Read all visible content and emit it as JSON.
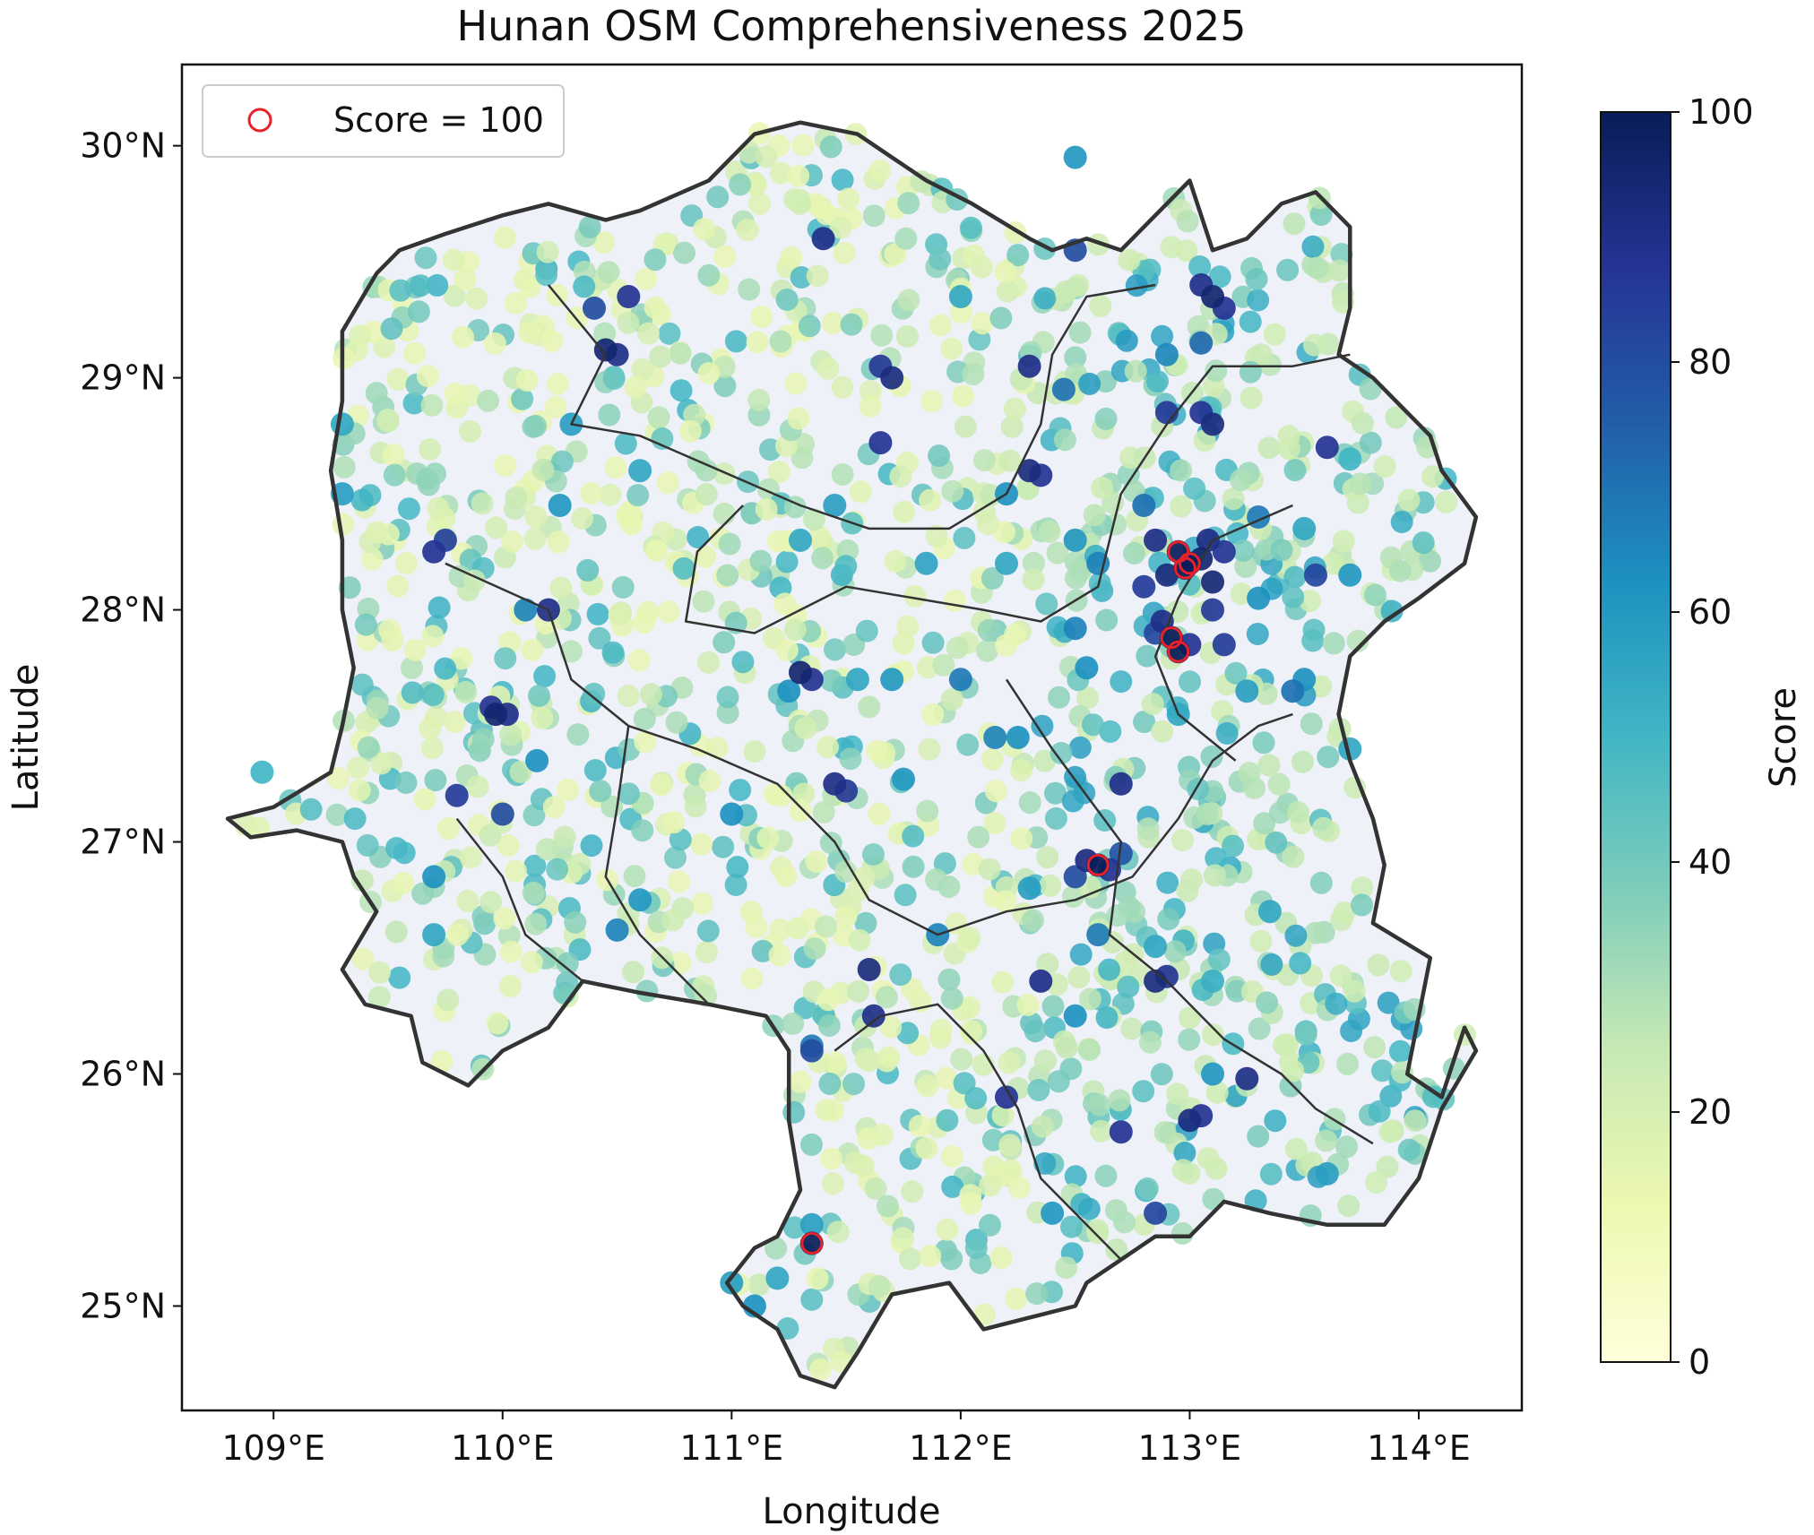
{
  "chart_data": {
    "type": "scatter",
    "title": "Hunan OSM Comprehensiveness 2025",
    "xlabel": "Longitude",
    "ylabel": "Latitude",
    "xlim": [
      108.6,
      114.45
    ],
    "ylim": [
      24.55,
      30.35
    ],
    "x_ticks": [
      {
        "value": 109,
        "label": "109°E"
      },
      {
        "value": 110,
        "label": "110°E"
      },
      {
        "value": 111,
        "label": "111°E"
      },
      {
        "value": 112,
        "label": "112°E"
      },
      {
        "value": 113,
        "label": "113°E"
      },
      {
        "value": 114,
        "label": "114°E"
      }
    ],
    "y_ticks": [
      {
        "value": 25,
        "label": "25°N"
      },
      {
        "value": 26,
        "label": "26°N"
      },
      {
        "value": 27,
        "label": "27°N"
      },
      {
        "value": 28,
        "label": "28°N"
      },
      {
        "value": 29,
        "label": "29°N"
      },
      {
        "value": 30,
        "label": "30°N"
      }
    ],
    "colorbar": {
      "label": "Score",
      "min": 0,
      "max": 100,
      "colormap": "YlGnBu",
      "ticks": [
        {
          "value": 0,
          "label": "0"
        },
        {
          "value": 20,
          "label": "20"
        },
        {
          "value": 40,
          "label": "40"
        },
        {
          "value": 60,
          "label": "60"
        },
        {
          "value": 80,
          "label": "80"
        },
        {
          "value": 100,
          "label": "100"
        }
      ]
    },
    "legend": {
      "position": "top-left",
      "label": "Score = 100",
      "marker_color": "#e8212a"
    },
    "boundary_lonlat": [
      [
        108.8,
        27.1
      ],
      [
        109.0,
        27.15
      ],
      [
        109.25,
        27.3
      ],
      [
        109.3,
        27.5
      ],
      [
        109.35,
        27.75
      ],
      [
        109.3,
        28.0
      ],
      [
        109.3,
        28.3
      ],
      [
        109.25,
        28.6
      ],
      [
        109.3,
        28.9
      ],
      [
        109.3,
        29.2
      ],
      [
        109.45,
        29.45
      ],
      [
        109.55,
        29.55
      ],
      [
        109.75,
        29.62
      ],
      [
        110.0,
        29.7
      ],
      [
        110.2,
        29.75
      ],
      [
        110.45,
        29.68
      ],
      [
        110.6,
        29.72
      ],
      [
        110.9,
        29.85
      ],
      [
        111.1,
        30.05
      ],
      [
        111.3,
        30.1
      ],
      [
        111.55,
        30.05
      ],
      [
        111.7,
        29.95
      ],
      [
        111.85,
        29.85
      ],
      [
        112.05,
        29.75
      ],
      [
        112.3,
        29.6
      ],
      [
        112.4,
        29.55
      ],
      [
        112.55,
        29.6
      ],
      [
        112.7,
        29.55
      ],
      [
        112.85,
        29.7
      ],
      [
        113.0,
        29.85
      ],
      [
        113.1,
        29.55
      ],
      [
        113.25,
        29.6
      ],
      [
        113.4,
        29.75
      ],
      [
        113.55,
        29.8
      ],
      [
        113.7,
        29.65
      ],
      [
        113.7,
        29.3
      ],
      [
        113.65,
        29.1
      ],
      [
        113.8,
        29.0
      ],
      [
        113.9,
        28.9
      ],
      [
        114.05,
        28.75
      ],
      [
        114.1,
        28.6
      ],
      [
        114.25,
        28.4
      ],
      [
        114.2,
        28.2
      ],
      [
        114.0,
        28.05
      ],
      [
        113.85,
        27.95
      ],
      [
        113.7,
        27.8
      ],
      [
        113.65,
        27.55
      ],
      [
        113.7,
        27.35
      ],
      [
        113.8,
        27.1
      ],
      [
        113.85,
        26.9
      ],
      [
        113.8,
        26.65
      ],
      [
        114.05,
        26.5
      ],
      [
        114.0,
        26.25
      ],
      [
        113.95,
        26.0
      ],
      [
        114.1,
        25.9
      ],
      [
        114.2,
        26.2
      ],
      [
        114.25,
        26.1
      ],
      [
        114.1,
        25.85
      ],
      [
        114.0,
        25.55
      ],
      [
        113.85,
        25.35
      ],
      [
        113.6,
        25.35
      ],
      [
        113.35,
        25.4
      ],
      [
        113.15,
        25.45
      ],
      [
        113.0,
        25.3
      ],
      [
        112.85,
        25.3
      ],
      [
        112.7,
        25.2
      ],
      [
        112.55,
        25.1
      ],
      [
        112.5,
        25.0
      ],
      [
        112.3,
        24.95
      ],
      [
        112.1,
        24.9
      ],
      [
        111.95,
        25.1
      ],
      [
        111.7,
        25.05
      ],
      [
        111.55,
        24.8
      ],
      [
        111.45,
        24.65
      ],
      [
        111.3,
        24.7
      ],
      [
        111.2,
        24.9
      ],
      [
        111.05,
        25.0
      ],
      [
        110.98,
        25.1
      ],
      [
        111.1,
        25.25
      ],
      [
        111.2,
        25.3
      ],
      [
        111.3,
        25.5
      ],
      [
        111.25,
        25.8
      ],
      [
        111.25,
        26.1
      ],
      [
        111.15,
        26.25
      ],
      [
        110.9,
        26.3
      ],
      [
        110.6,
        26.35
      ],
      [
        110.35,
        26.4
      ],
      [
        110.2,
        26.2
      ],
      [
        110.0,
        26.1
      ],
      [
        109.85,
        25.95
      ],
      [
        109.65,
        26.05
      ],
      [
        109.6,
        26.25
      ],
      [
        109.4,
        26.3
      ],
      [
        109.3,
        26.45
      ],
      [
        109.45,
        26.7
      ],
      [
        109.35,
        26.85
      ],
      [
        109.3,
        27.0
      ],
      [
        109.1,
        27.05
      ],
      [
        108.9,
        27.02
      ],
      [
        108.8,
        27.1
      ]
    ],
    "inner_borders_lonlat": [
      [
        [
          110.2,
          29.4
        ],
        [
          110.45,
          29.1
        ],
        [
          110.3,
          28.8
        ],
        [
          110.6,
          28.75
        ],
        [
          110.95,
          28.6
        ],
        [
          111.3,
          28.45
        ],
        [
          111.6,
          28.35
        ],
        [
          111.95,
          28.35
        ],
        [
          112.2,
          28.5
        ],
        [
          112.35,
          28.8
        ],
        [
          112.4,
          29.1
        ],
        [
          112.55,
          29.35
        ],
        [
          112.85,
          29.4
        ]
      ],
      [
        [
          111.05,
          28.45
        ],
        [
          110.85,
          28.25
        ],
        [
          110.8,
          27.95
        ],
        [
          111.1,
          27.9
        ],
        [
          111.3,
          28.0
        ],
        [
          111.5,
          28.1
        ],
        [
          111.8,
          28.05
        ],
        [
          112.1,
          28.0
        ],
        [
          112.35,
          27.95
        ],
        [
          112.6,
          28.1
        ],
        [
          112.7,
          28.5
        ],
        [
          112.9,
          28.8
        ],
        [
          113.1,
          29.05
        ],
        [
          113.45,
          29.05
        ],
        [
          113.7,
          29.1
        ]
      ],
      [
        [
          109.75,
          28.2
        ],
        [
          110.2,
          28.0
        ],
        [
          110.3,
          27.7
        ],
        [
          110.55,
          27.5
        ],
        [
          110.85,
          27.4
        ],
        [
          111.2,
          27.25
        ],
        [
          111.45,
          27.0
        ],
        [
          111.6,
          26.75
        ],
        [
          111.9,
          26.6
        ],
        [
          112.2,
          26.7
        ],
        [
          112.5,
          26.75
        ],
        [
          112.75,
          26.85
        ],
        [
          112.95,
          27.1
        ],
        [
          113.1,
          27.35
        ],
        [
          113.3,
          27.5
        ],
        [
          113.45,
          27.55
        ]
      ],
      [
        [
          112.2,
          27.7
        ],
        [
          112.4,
          27.4
        ],
        [
          112.55,
          27.2
        ],
        [
          112.7,
          27.0
        ],
        [
          112.65,
          26.6
        ],
        [
          112.9,
          26.4
        ],
        [
          113.15,
          26.15
        ],
        [
          113.4,
          26.0
        ],
        [
          113.55,
          25.85
        ],
        [
          113.8,
          25.7
        ]
      ],
      [
        [
          111.45,
          26.1
        ],
        [
          111.65,
          26.25
        ],
        [
          111.9,
          26.3
        ],
        [
          112.1,
          26.1
        ],
        [
          112.25,
          25.85
        ],
        [
          112.35,
          25.55
        ],
        [
          112.55,
          25.35
        ],
        [
          112.7,
          25.2
        ]
      ],
      [
        [
          113.45,
          28.45
        ],
        [
          113.1,
          28.3
        ],
        [
          112.95,
          28.05
        ],
        [
          112.85,
          27.8
        ],
        [
          112.95,
          27.55
        ],
        [
          113.2,
          27.35
        ]
      ],
      [
        [
          109.8,
          27.1
        ],
        [
          110.0,
          26.85
        ],
        [
          110.1,
          26.6
        ],
        [
          110.35,
          26.4
        ]
      ],
      [
        [
          110.55,
          27.5
        ],
        [
          110.5,
          27.15
        ],
        [
          110.45,
          26.85
        ],
        [
          110.6,
          26.6
        ],
        [
          110.9,
          26.3
        ]
      ]
    ],
    "points": [
      [
        113.0,
        28.2,
        100
      ],
      [
        112.95,
        28.25,
        100
      ],
      [
        112.98,
        28.18,
        100
      ],
      [
        112.92,
        27.88,
        100
      ],
      [
        112.95,
        27.82,
        100
      ],
      [
        112.6,
        26.9,
        100
      ],
      [
        111.35,
        25.27,
        100
      ],
      [
        113.05,
        28.22,
        95
      ],
      [
        112.9,
        28.15,
        92
      ],
      [
        113.1,
        28.12,
        94
      ],
      [
        112.85,
        28.3,
        90
      ],
      [
        113.08,
        28.3,
        91
      ],
      [
        112.8,
        28.1,
        85
      ],
      [
        113.15,
        28.25,
        88
      ],
      [
        112.88,
        27.95,
        90
      ],
      [
        113.0,
        27.85,
        88
      ],
      [
        113.15,
        27.85,
        85
      ],
      [
        112.85,
        27.9,
        82
      ],
      [
        113.1,
        28.0,
        86
      ],
      [
        112.55,
        26.92,
        92
      ],
      [
        112.65,
        26.88,
        88
      ],
      [
        112.5,
        26.85,
        80
      ],
      [
        112.7,
        26.95,
        78
      ],
      [
        113.1,
        29.35,
        95
      ],
      [
        113.05,
        29.4,
        90
      ],
      [
        113.15,
        29.3,
        88
      ],
      [
        113.1,
        28.8,
        92
      ],
      [
        113.05,
        28.85,
        88
      ],
      [
        112.9,
        28.85,
        86
      ],
      [
        112.3,
        28.6,
        92
      ],
      [
        112.35,
        28.58,
        88
      ],
      [
        112.3,
        29.05,
        90
      ],
      [
        110.45,
        29.12,
        95
      ],
      [
        110.5,
        29.1,
        90
      ],
      [
        110.55,
        29.35,
        88
      ],
      [
        110.4,
        29.3,
        80
      ],
      [
        111.7,
        29.0,
        92
      ],
      [
        111.65,
        29.05,
        86
      ],
      [
        111.65,
        28.72,
        88
      ],
      [
        111.4,
        29.6,
        90
      ],
      [
        109.97,
        27.55,
        95
      ],
      [
        110.02,
        27.55,
        90
      ],
      [
        109.95,
        27.58,
        88
      ],
      [
        110.0,
        27.12,
        80
      ],
      [
        109.7,
        28.25,
        88
      ],
      [
        109.75,
        28.3,
        84
      ],
      [
        110.2,
        28.0,
        90
      ],
      [
        109.8,
        27.2,
        85
      ],
      [
        111.3,
        27.73,
        95
      ],
      [
        111.35,
        27.7,
        88
      ],
      [
        111.45,
        27.25,
        90
      ],
      [
        111.5,
        27.22,
        86
      ],
      [
        112.85,
        26.4,
        92
      ],
      [
        112.9,
        26.42,
        88
      ],
      [
        112.35,
        26.4,
        90
      ],
      [
        113.0,
        25.8,
        92
      ],
      [
        113.05,
        25.82,
        88
      ],
      [
        112.7,
        25.75,
        88
      ],
      [
        112.85,
        25.4,
        82
      ],
      [
        113.25,
        25.98,
        90
      ],
      [
        111.6,
        26.45,
        92
      ],
      [
        111.62,
        26.25,
        90
      ],
      [
        111.35,
        26.1,
        80
      ],
      [
        112.2,
        25.9,
        88
      ],
      [
        112.7,
        27.25,
        90
      ],
      [
        113.6,
        28.7,
        88
      ],
      [
        113.55,
        28.15,
        82
      ],
      [
        113.45,
        27.65,
        70
      ],
      [
        112.5,
        29.55,
        80
      ],
      [
        112.45,
        28.95,
        70
      ],
      [
        112.9,
        29.1,
        65
      ],
      [
        113.05,
        29.15,
        72
      ],
      [
        110.25,
        28.45,
        60
      ],
      [
        110.6,
        28.6,
        55
      ],
      [
        110.1,
        28.0,
        66
      ],
      [
        109.3,
        28.5,
        58
      ],
      [
        109.3,
        28.8,
        55
      ],
      [
        108.95,
        27.3,
        50
      ],
      [
        109.7,
        26.85,
        62
      ],
      [
        109.7,
        26.6,
        55
      ],
      [
        110.15,
        27.35,
        62
      ],
      [
        110.6,
        26.75,
        60
      ],
      [
        110.5,
        26.62,
        66
      ],
      [
        111.0,
        27.12,
        62
      ],
      [
        111.0,
        25.1,
        58
      ],
      [
        111.1,
        25.0,
        62
      ],
      [
        111.2,
        25.12,
        55
      ],
      [
        111.35,
        25.35,
        58
      ],
      [
        111.35,
        26.12,
        68
      ],
      [
        111.75,
        27.27,
        60
      ],
      [
        111.9,
        26.6,
        66
      ],
      [
        112.4,
        25.4,
        60
      ],
      [
        112.6,
        26.6,
        68
      ],
      [
        112.5,
        26.25,
        62
      ],
      [
        112.3,
        26.8,
        58
      ],
      [
        112.85,
        26.55,
        55
      ],
      [
        113.1,
        26.0,
        60
      ],
      [
        113.35,
        26.7,
        55
      ],
      [
        113.6,
        25.57,
        58
      ],
      [
        113.1,
        26.4,
        52
      ],
      [
        112.15,
        27.45,
        66
      ],
      [
        112.25,
        27.45,
        62
      ],
      [
        112.0,
        27.7,
        68
      ],
      [
        111.55,
        27.7,
        55
      ],
      [
        111.7,
        27.7,
        60
      ],
      [
        111.25,
        27.65,
        62
      ],
      [
        110.3,
        28.8,
        58
      ],
      [
        111.3,
        28.3,
        55
      ],
      [
        112.2,
        28.5,
        62
      ],
      [
        112.5,
        28.3,
        60
      ],
      [
        112.6,
        28.2,
        66
      ],
      [
        112.2,
        28.2,
        55
      ],
      [
        111.85,
        28.2,
        56
      ],
      [
        112.5,
        29.95,
        60
      ],
      [
        112.0,
        29.35,
        55
      ],
      [
        111.45,
        28.45,
        58
      ],
      [
        113.7,
        28.15,
        60
      ],
      [
        113.7,
        27.4,
        55
      ],
      [
        113.5,
        27.7,
        62
      ],
      [
        113.25,
        27.65,
        58
      ],
      [
        112.95,
        27.55,
        55
      ],
      [
        112.55,
        27.75,
        62
      ],
      [
        112.5,
        27.92,
        66
      ],
      [
        112.8,
        28.45,
        70
      ],
      [
        113.3,
        28.4,
        68
      ],
      [
        113.3,
        28.05,
        62
      ],
      [
        113.5,
        28.35,
        55
      ],
      [
        113.7,
        28.65,
        50
      ]
    ]
  }
}
